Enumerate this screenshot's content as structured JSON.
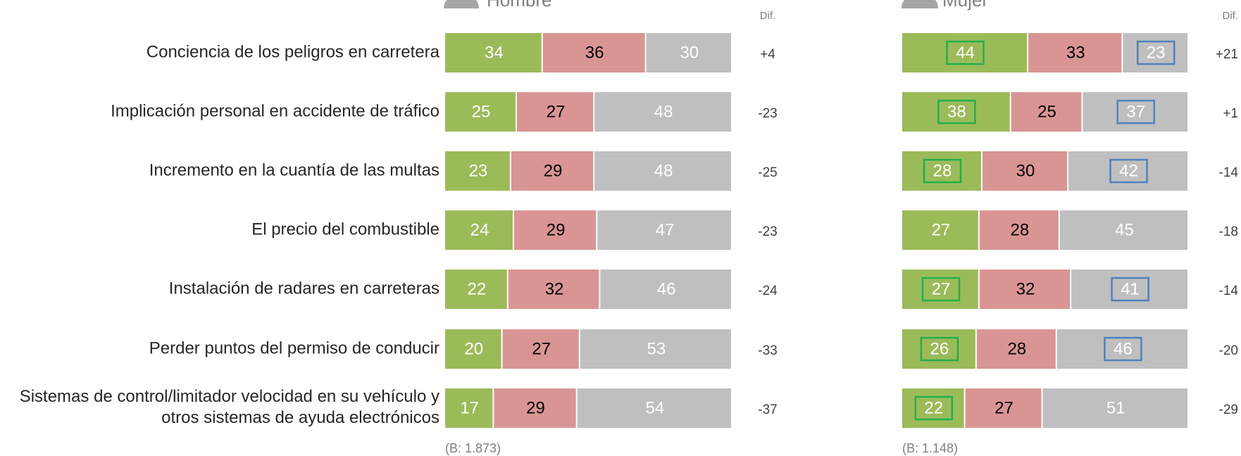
{
  "chart_data": [
    {
      "type": "stacked-bar",
      "title": "Hombre",
      "categories": [
        "Conciencia de los peligros en carretera",
        "Implicación personal en accidente de tráfico",
        "Incremento en la cuantía de las multas",
        "El precio del combustible",
        "Instalación de radares en carreteras",
        "Perder puntos del permiso de conducir",
        "Sistemas de control/limitador velocidad en su vehículo y\notros sistemas de ayuda electrónicos"
      ],
      "xlim": [
        0,
        100
      ],
      "series": [
        {
          "color": "#9bbb59",
          "label_color": "#ffffff",
          "values": [
            34,
            25,
            23,
            24,
            22,
            20,
            17
          ]
        },
        {
          "color": "#d99594",
          "label_color": "#000000",
          "values": [
            36,
            27,
            29,
            29,
            32,
            27,
            29
          ]
        },
        {
          "color": "#bfbfbf",
          "label_color": "#ffffff",
          "values": [
            30,
            48,
            48,
            47,
            46,
            53,
            54
          ]
        }
      ],
      "difference_header": "Dif.",
      "difference": {
        "values": [
          4,
          -23,
          -25,
          -23,
          -24,
          -33,
          -37
        ],
        "value_labels": [
          "+4",
          "-23",
          "-25",
          "-23",
          "-24",
          "-33",
          "-37"
        ]
      },
      "note": "(B: 1.873)"
    },
    {
      "type": "stacked-bar",
      "title": "Mujer",
      "xlim": [
        0,
        100
      ],
      "series": [
        {
          "color": "#9bbb59",
          "label_color": "#ffffff",
          "box_color": "#22b04a",
          "boxed": [
            true,
            true,
            true,
            false,
            true,
            true,
            true
          ],
          "values": [
            44,
            38,
            28,
            27,
            27,
            26,
            22
          ]
        },
        {
          "color": "#d99594",
          "label_color": "#000000",
          "values": [
            33,
            25,
            30,
            28,
            32,
            28,
            27
          ]
        },
        {
          "color": "#bfbfbf",
          "label_color": "#ffffff",
          "box_color": "#4f81bd",
          "boxed": [
            true,
            true,
            true,
            false,
            true,
            true,
            false
          ],
          "values": [
            23,
            37,
            42,
            45,
            41,
            46,
            51
          ]
        }
      ],
      "difference_header": "Dif.",
      "difference": {
        "values": [
          21,
          1,
          -14,
          -18,
          -14,
          -20,
          -29
        ],
        "value_labels": [
          "+21",
          "+1",
          "-14",
          "-18",
          "-14",
          "-20",
          "-29"
        ]
      },
      "note": "(B: 1.148)"
    }
  ]
}
